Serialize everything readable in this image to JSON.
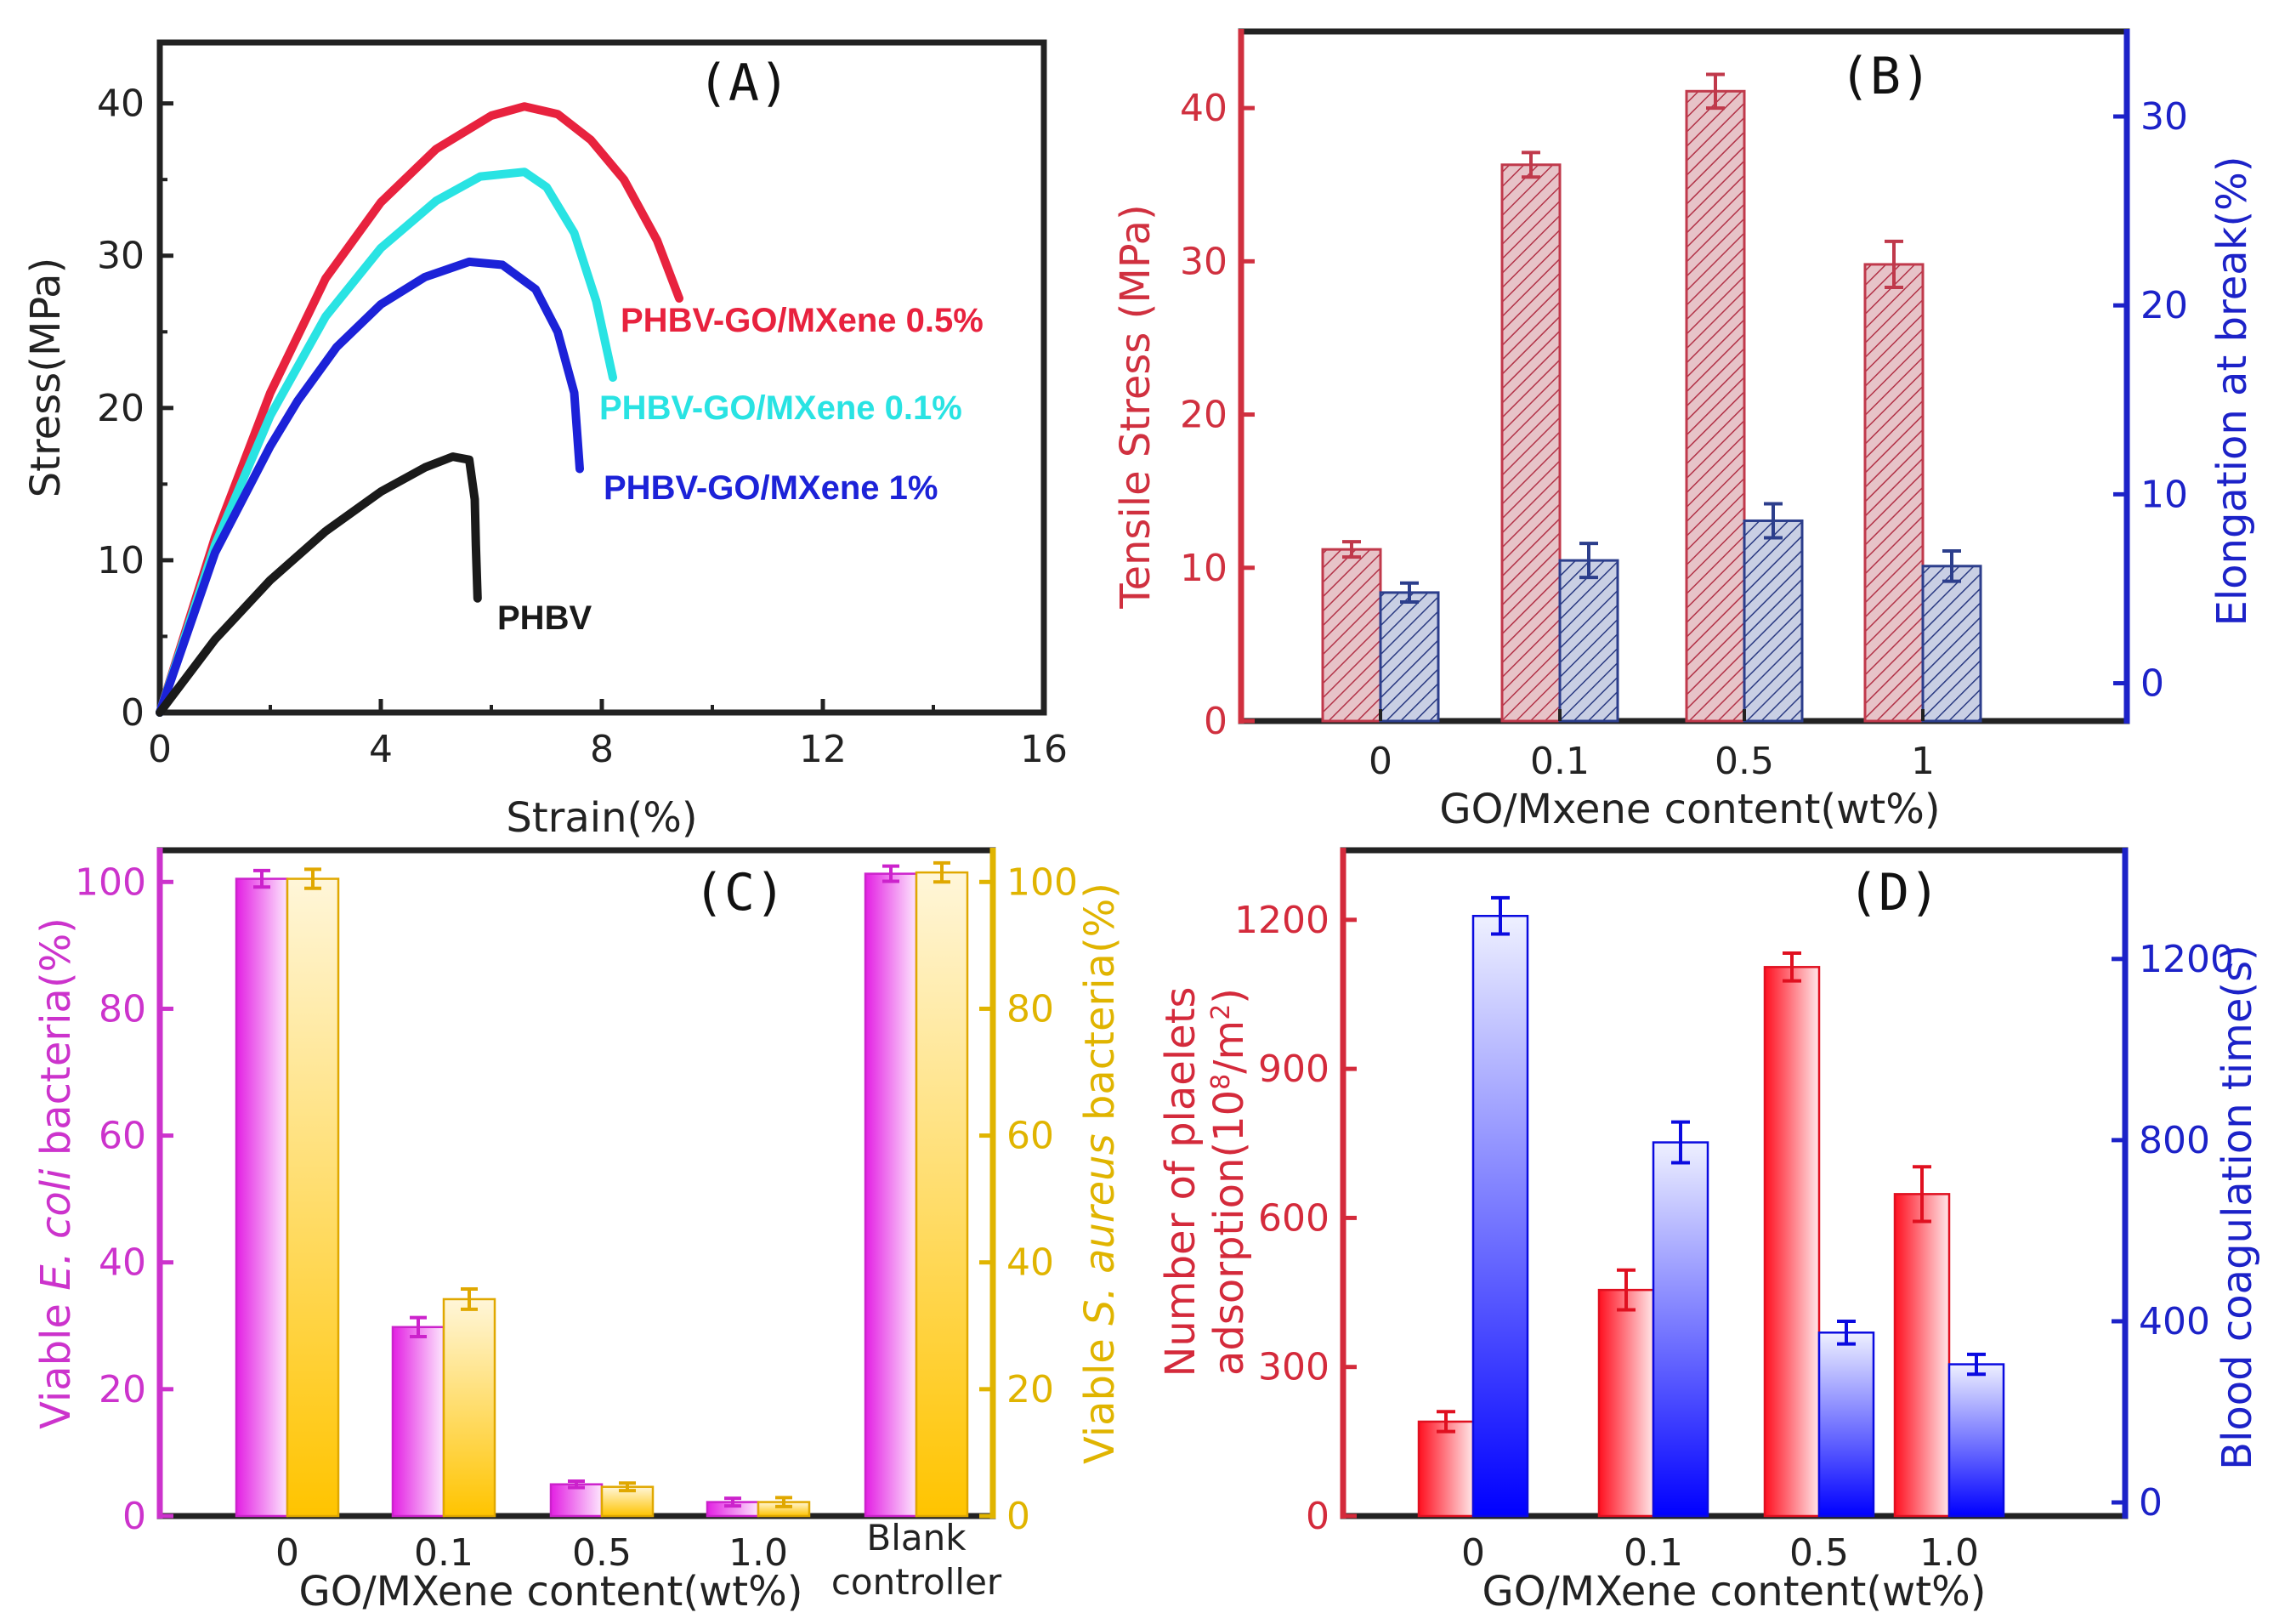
{
  "chart_data": [
    {
      "id": "A",
      "panel_label": "(A)",
      "type": "line",
      "xlabel": "Strain(%)",
      "ylabel": "Stress(MPa)",
      "xlim": [
        0,
        16
      ],
      "ylim": [
        0,
        44
      ],
      "xticks": [
        "0",
        "4",
        "8",
        "12",
        "16"
      ],
      "yticks": [
        "0",
        "10",
        "20",
        "30",
        "40"
      ],
      "series": [
        {
          "name": "PHBV-GO/MXene 0.5%",
          "color": "#e8223e",
          "x": [
            0,
            1,
            2,
            3,
            4,
            5,
            6,
            6.6,
            7.2,
            7.8,
            8.4,
            9.0,
            9.4
          ],
          "y": [
            0,
            11.5,
            21,
            28.5,
            33.5,
            37,
            39.2,
            39.8,
            39.3,
            37.6,
            35,
            31,
            27.2
          ]
        },
        {
          "name": "PHBV-GO/MXene 0.1%",
          "color": "#29e3e3",
          "x": [
            0,
            1,
            2,
            3,
            4,
            5,
            5.8,
            6.6,
            7.0,
            7.5,
            7.9,
            8.2
          ],
          "y": [
            0,
            11,
            19.5,
            26,
            30.5,
            33.6,
            35.2,
            35.5,
            34.5,
            31.5,
            27,
            22
          ]
        },
        {
          "name": "PHBV-GO/MXene 1%",
          "color": "#1c22d8",
          "x": [
            0,
            1,
            2,
            2.5,
            3.2,
            4,
            4.8,
            5.6,
            6.2,
            6.8,
            7.2,
            7.5,
            7.6
          ],
          "y": [
            0,
            10.5,
            17.5,
            20.5,
            24,
            26.8,
            28.6,
            29.6,
            29.4,
            27.8,
            25,
            21,
            16
          ]
        },
        {
          "name": "PHBV",
          "color": "#1a1a1a",
          "x": [
            0,
            1,
            2,
            3,
            4,
            4.8,
            5.3,
            5.6,
            5.7,
            5.72,
            5.75
          ],
          "y": [
            0,
            4.8,
            8.7,
            11.9,
            14.5,
            16.1,
            16.8,
            16.6,
            14,
            11,
            7.5
          ]
        }
      ],
      "labels": [
        {
          "text": "PHBV-GO/MXene 0.5%",
          "color": "#e8223e"
        },
        {
          "text": "PHBV-GO/MXene 0.1%",
          "color": "#29e3e3"
        },
        {
          "text": "PHBV-GO/MXene 1%",
          "color": "#1c22d8"
        },
        {
          "text": "PHBV",
          "color": "#1a1a1a"
        }
      ]
    },
    {
      "id": "B",
      "panel_label": "(B)",
      "type": "bar",
      "xlabel": "GO/Mxene content(wt%)",
      "categories": [
        "0",
        "0.1",
        "0.5",
        "1"
      ],
      "y_left": {
        "label": "Tensile Stress (MPa)",
        "lim": [
          0,
          45
        ],
        "ticks": [
          "0",
          "10",
          "20",
          "30",
          "40"
        ],
        "color": "#d0303f"
      },
      "y_right": {
        "label": "Elongation at break(%)",
        "lim": [
          -2,
          34.5
        ],
        "ticks": [
          "0",
          "10",
          "20",
          "30"
        ],
        "color": "#1c22c8"
      },
      "series": [
        {
          "name": "Tensile Stress",
          "axis": "left",
          "color": "#c0394b",
          "values": [
            11.2,
            36.3,
            41.1,
            29.8
          ],
          "errors": [
            0.5,
            0.8,
            1.1,
            1.5
          ]
        },
        {
          "name": "Elongation at break",
          "axis": "right",
          "color": "#2c3e8c",
          "values": [
            4.8,
            6.5,
            8.6,
            6.2
          ],
          "errors": [
            0.5,
            0.9,
            0.9,
            0.8
          ]
        }
      ]
    },
    {
      "id": "C",
      "panel_label": "(C)",
      "type": "bar",
      "xlabel": "GO/MXene content(wt%)",
      "categories": [
        "0",
        "0.1",
        "0.5",
        "1.0",
        "Blank controller"
      ],
      "y_left": {
        "label_parts": [
          "Viable ",
          "E. coli",
          " bacteria(%)"
        ],
        "lim": [
          0,
          105
        ],
        "ticks": [
          "0",
          "20",
          "40",
          "60",
          "80",
          "100"
        ],
        "color": "#cc33cc"
      },
      "y_right": {
        "label_parts": [
          "Viable ",
          "S. aureus",
          " bacteria(%)"
        ],
        "lim": [
          0,
          105
        ],
        "ticks": [
          "0",
          "20",
          "40",
          "60",
          "80",
          "100"
        ],
        "color": "#e0b400"
      },
      "series": [
        {
          "name": "E. coli",
          "axis": "left",
          "color": "#e020e0",
          "values": [
            100.5,
            29.8,
            5,
            2.2,
            101.3
          ],
          "errors": [
            1.3,
            1.5,
            0.5,
            0.6,
            1.2
          ]
        },
        {
          "name": "S. aureus",
          "axis": "right",
          "color": "#ffc400",
          "values": [
            100.5,
            34.2,
            4.6,
            2.2,
            101.5
          ],
          "errors": [
            1.5,
            1.6,
            0.6,
            0.7,
            1.5
          ]
        }
      ]
    },
    {
      "id": "D",
      "panel_label": "(D)",
      "type": "bar",
      "xlabel": "GO/MXene content(wt%)",
      "categories": [
        "0",
        "0.1",
        "0.5",
        "1.0"
      ],
      "y_left": {
        "label_line1": "Number of plaelets",
        "label_line2_parts": [
          "adsorption(10",
          "8",
          "/m",
          "2",
          ")"
        ],
        "lim": [
          0,
          1340
        ],
        "ticks": [
          "0",
          "300",
          "600",
          "900",
          "1200"
        ],
        "color": "#d42a3b"
      },
      "y_right": {
        "label": "Blood coagulation time(s)",
        "lim": [
          -30,
          1440
        ],
        "ticks": [
          "0",
          "400",
          "800",
          "1200"
        ],
        "color": "#1c22c8"
      },
      "series": [
        {
          "name": "Number of plaelets adsorption",
          "axis": "left",
          "color": "#ff1020",
          "values": [
            190,
            455,
            1105,
            648
          ],
          "errors": [
            20,
            40,
            28,
            55
          ]
        },
        {
          "name": "Blood coagulation time",
          "axis": "right",
          "color": "#0a0aff",
          "values": [
            1295,
            795,
            375,
            305
          ],
          "errors": [
            40,
            45,
            25,
            22
          ]
        }
      ]
    }
  ]
}
